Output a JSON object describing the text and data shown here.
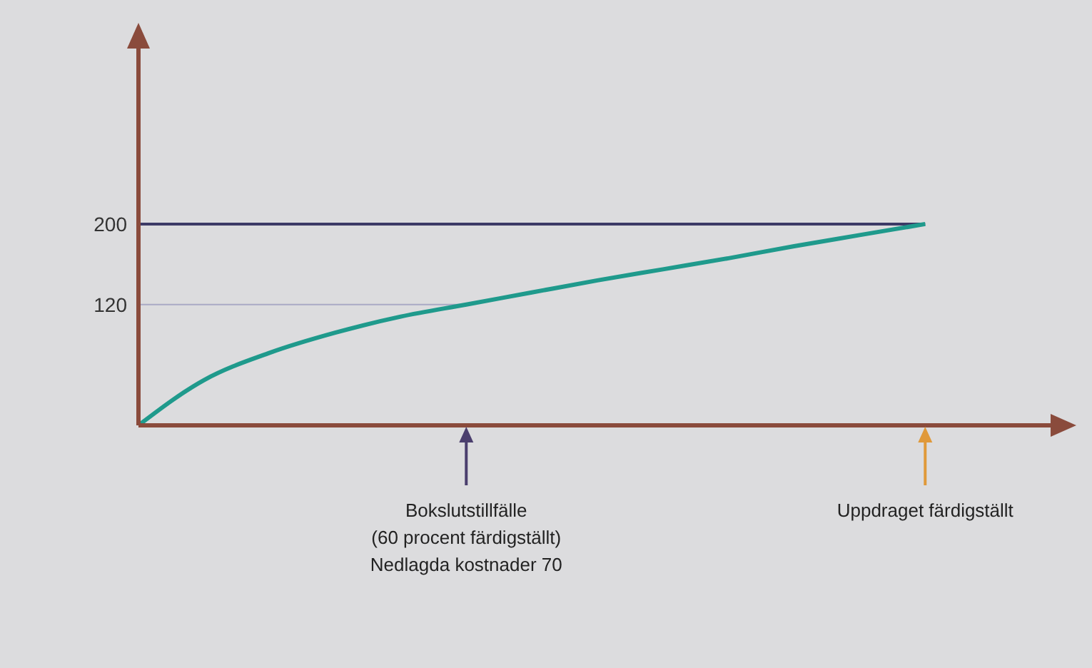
{
  "chart_data": {
    "type": "line",
    "categories": [
      null,
      null,
      null,
      null,
      null,
      null,
      null,
      null,
      null,
      null,
      null,
      null,
      null,
      null,
      null
    ],
    "series": [
      {
        "color": "#1f9a8c",
        "values": [
          0,
          45,
          72,
          92,
          108,
          120,
          132,
          144,
          155,
          166,
          178,
          189,
          200,
          null,
          null
        ]
      }
    ],
    "ylim": [
      0,
      380
    ],
    "yticks": [
      120,
      200
    ],
    "grid": false,
    "legend": false,
    "marker": "none",
    "line_style": "solid",
    "ref_lines": [
      {
        "axis": "y",
        "value": 200,
        "color": "#3c3a66"
      },
      {
        "axis": "y",
        "value": 120,
        "color": "#a9a9c4"
      }
    ],
    "annotations": [
      "Bokslutstillfälle\n(60 procent färdigställt)\nNedlagda kostnader 70",
      "Uppdraget färdigställt"
    ]
  }
}
